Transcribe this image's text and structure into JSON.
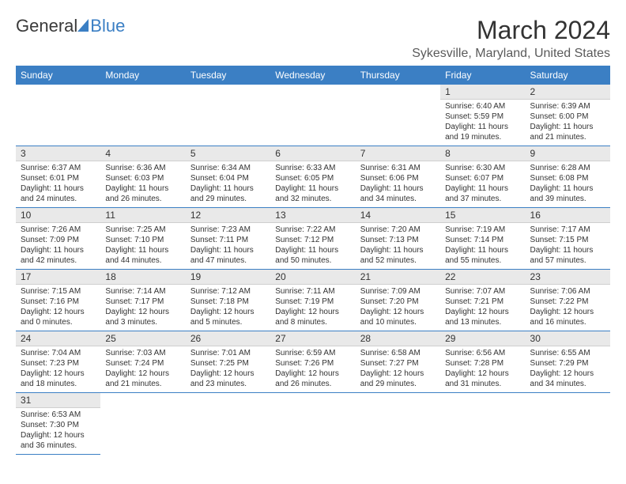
{
  "logo": {
    "part1": "General",
    "part2": "Blue"
  },
  "title": "March 2024",
  "subtitle": "Sykesville, Maryland, United States",
  "colors": {
    "header_bg": "#3b7fc4",
    "header_fg": "#ffffff",
    "daynum_bg": "#e9e9e9",
    "row_border": "#3b7fc4",
    "text": "#333333"
  },
  "fonts": {
    "title_size": 32,
    "subtitle_size": 16,
    "th_size": 12,
    "daynum_size": 12,
    "cell_size": 10
  },
  "day_headers": [
    "Sunday",
    "Monday",
    "Tuesday",
    "Wednesday",
    "Thursday",
    "Friday",
    "Saturday"
  ],
  "weeks": [
    [
      null,
      null,
      null,
      null,
      null,
      {
        "n": "1",
        "sunrise": "Sunrise: 6:40 AM",
        "sunset": "Sunset: 5:59 PM",
        "daylight": "Daylight: 11 hours and 19 minutes."
      },
      {
        "n": "2",
        "sunrise": "Sunrise: 6:39 AM",
        "sunset": "Sunset: 6:00 PM",
        "daylight": "Daylight: 11 hours and 21 minutes."
      }
    ],
    [
      {
        "n": "3",
        "sunrise": "Sunrise: 6:37 AM",
        "sunset": "Sunset: 6:01 PM",
        "daylight": "Daylight: 11 hours and 24 minutes."
      },
      {
        "n": "4",
        "sunrise": "Sunrise: 6:36 AM",
        "sunset": "Sunset: 6:03 PM",
        "daylight": "Daylight: 11 hours and 26 minutes."
      },
      {
        "n": "5",
        "sunrise": "Sunrise: 6:34 AM",
        "sunset": "Sunset: 6:04 PM",
        "daylight": "Daylight: 11 hours and 29 minutes."
      },
      {
        "n": "6",
        "sunrise": "Sunrise: 6:33 AM",
        "sunset": "Sunset: 6:05 PM",
        "daylight": "Daylight: 11 hours and 32 minutes."
      },
      {
        "n": "7",
        "sunrise": "Sunrise: 6:31 AM",
        "sunset": "Sunset: 6:06 PM",
        "daylight": "Daylight: 11 hours and 34 minutes."
      },
      {
        "n": "8",
        "sunrise": "Sunrise: 6:30 AM",
        "sunset": "Sunset: 6:07 PM",
        "daylight": "Daylight: 11 hours and 37 minutes."
      },
      {
        "n": "9",
        "sunrise": "Sunrise: 6:28 AM",
        "sunset": "Sunset: 6:08 PM",
        "daylight": "Daylight: 11 hours and 39 minutes."
      }
    ],
    [
      {
        "n": "10",
        "sunrise": "Sunrise: 7:26 AM",
        "sunset": "Sunset: 7:09 PM",
        "daylight": "Daylight: 11 hours and 42 minutes."
      },
      {
        "n": "11",
        "sunrise": "Sunrise: 7:25 AM",
        "sunset": "Sunset: 7:10 PM",
        "daylight": "Daylight: 11 hours and 44 minutes."
      },
      {
        "n": "12",
        "sunrise": "Sunrise: 7:23 AM",
        "sunset": "Sunset: 7:11 PM",
        "daylight": "Daylight: 11 hours and 47 minutes."
      },
      {
        "n": "13",
        "sunrise": "Sunrise: 7:22 AM",
        "sunset": "Sunset: 7:12 PM",
        "daylight": "Daylight: 11 hours and 50 minutes."
      },
      {
        "n": "14",
        "sunrise": "Sunrise: 7:20 AM",
        "sunset": "Sunset: 7:13 PM",
        "daylight": "Daylight: 11 hours and 52 minutes."
      },
      {
        "n": "15",
        "sunrise": "Sunrise: 7:19 AM",
        "sunset": "Sunset: 7:14 PM",
        "daylight": "Daylight: 11 hours and 55 minutes."
      },
      {
        "n": "16",
        "sunrise": "Sunrise: 7:17 AM",
        "sunset": "Sunset: 7:15 PM",
        "daylight": "Daylight: 11 hours and 57 minutes."
      }
    ],
    [
      {
        "n": "17",
        "sunrise": "Sunrise: 7:15 AM",
        "sunset": "Sunset: 7:16 PM",
        "daylight": "Daylight: 12 hours and 0 minutes."
      },
      {
        "n": "18",
        "sunrise": "Sunrise: 7:14 AM",
        "sunset": "Sunset: 7:17 PM",
        "daylight": "Daylight: 12 hours and 3 minutes."
      },
      {
        "n": "19",
        "sunrise": "Sunrise: 7:12 AM",
        "sunset": "Sunset: 7:18 PM",
        "daylight": "Daylight: 12 hours and 5 minutes."
      },
      {
        "n": "20",
        "sunrise": "Sunrise: 7:11 AM",
        "sunset": "Sunset: 7:19 PM",
        "daylight": "Daylight: 12 hours and 8 minutes."
      },
      {
        "n": "21",
        "sunrise": "Sunrise: 7:09 AM",
        "sunset": "Sunset: 7:20 PM",
        "daylight": "Daylight: 12 hours and 10 minutes."
      },
      {
        "n": "22",
        "sunrise": "Sunrise: 7:07 AM",
        "sunset": "Sunset: 7:21 PM",
        "daylight": "Daylight: 12 hours and 13 minutes."
      },
      {
        "n": "23",
        "sunrise": "Sunrise: 7:06 AM",
        "sunset": "Sunset: 7:22 PM",
        "daylight": "Daylight: 12 hours and 16 minutes."
      }
    ],
    [
      {
        "n": "24",
        "sunrise": "Sunrise: 7:04 AM",
        "sunset": "Sunset: 7:23 PM",
        "daylight": "Daylight: 12 hours and 18 minutes."
      },
      {
        "n": "25",
        "sunrise": "Sunrise: 7:03 AM",
        "sunset": "Sunset: 7:24 PM",
        "daylight": "Daylight: 12 hours and 21 minutes."
      },
      {
        "n": "26",
        "sunrise": "Sunrise: 7:01 AM",
        "sunset": "Sunset: 7:25 PM",
        "daylight": "Daylight: 12 hours and 23 minutes."
      },
      {
        "n": "27",
        "sunrise": "Sunrise: 6:59 AM",
        "sunset": "Sunset: 7:26 PM",
        "daylight": "Daylight: 12 hours and 26 minutes."
      },
      {
        "n": "28",
        "sunrise": "Sunrise: 6:58 AM",
        "sunset": "Sunset: 7:27 PM",
        "daylight": "Daylight: 12 hours and 29 minutes."
      },
      {
        "n": "29",
        "sunrise": "Sunrise: 6:56 AM",
        "sunset": "Sunset: 7:28 PM",
        "daylight": "Daylight: 12 hours and 31 minutes."
      },
      {
        "n": "30",
        "sunrise": "Sunrise: 6:55 AM",
        "sunset": "Sunset: 7:29 PM",
        "daylight": "Daylight: 12 hours and 34 minutes."
      }
    ],
    [
      {
        "n": "31",
        "sunrise": "Sunrise: 6:53 AM",
        "sunset": "Sunset: 7:30 PM",
        "daylight": "Daylight: 12 hours and 36 minutes."
      },
      null,
      null,
      null,
      null,
      null,
      null
    ]
  ]
}
